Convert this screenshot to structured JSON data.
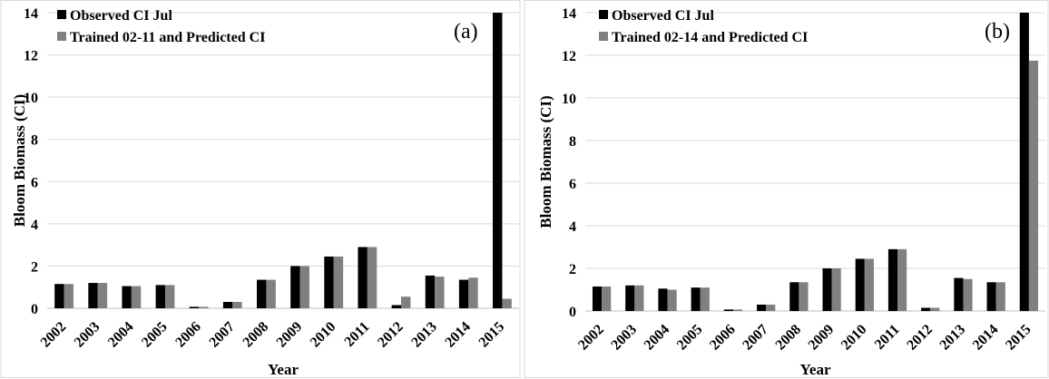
{
  "chart_data": [
    {
      "type": "bar",
      "panel_label": "(a)",
      "xlabel": "Year",
      "ylabel": "Bloom Biomass (CI)",
      "ylim": [
        0,
        14
      ],
      "yticks": [
        0,
        2,
        4,
        6,
        8,
        10,
        12,
        14
      ],
      "grid": true,
      "legend_position": "top-left",
      "categories": [
        "2002",
        "2003",
        "2004",
        "2005",
        "2006",
        "2007",
        "2008",
        "2009",
        "2010",
        "2011",
        "2012",
        "2013",
        "2014",
        "2015"
      ],
      "series": [
        {
          "name": "Observed CI Jul",
          "color": "#000000",
          "values": [
            1.15,
            1.2,
            1.05,
            1.1,
            0.07,
            0.3,
            1.35,
            2.0,
            2.45,
            2.9,
            0.15,
            1.55,
            1.35,
            14.0
          ]
        },
        {
          "name": "Trained 02-11 and Predicted CI",
          "color": "#808080",
          "values": [
            1.15,
            1.2,
            1.05,
            1.1,
            0.07,
            0.3,
            1.35,
            2.0,
            2.45,
            2.9,
            0.55,
            1.5,
            1.45,
            0.45
          ]
        }
      ]
    },
    {
      "type": "bar",
      "panel_label": "(b)",
      "xlabel": "Year",
      "ylabel": "Bloom Biomass (CI)",
      "ylim": [
        0,
        14
      ],
      "yticks": [
        0,
        2,
        4,
        6,
        8,
        10,
        12,
        14
      ],
      "grid": true,
      "legend_position": "top-left",
      "categories": [
        "2002",
        "2003",
        "2004",
        "2005",
        "2006",
        "2007",
        "2008",
        "2009",
        "2010",
        "2011",
        "2012",
        "2013",
        "2014",
        "2015"
      ],
      "series": [
        {
          "name": "Observed CI Jul",
          "color": "#000000",
          "values": [
            1.15,
            1.2,
            1.05,
            1.1,
            0.07,
            0.3,
            1.35,
            2.0,
            2.45,
            2.9,
            0.15,
            1.55,
            1.35,
            14.0
          ]
        },
        {
          "name": "Trained 02-14 and Predicted CI",
          "color": "#808080",
          "values": [
            1.15,
            1.2,
            1.0,
            1.1,
            0.07,
            0.3,
            1.35,
            2.0,
            2.45,
            2.9,
            0.15,
            1.5,
            1.35,
            11.75
          ]
        }
      ]
    }
  ]
}
